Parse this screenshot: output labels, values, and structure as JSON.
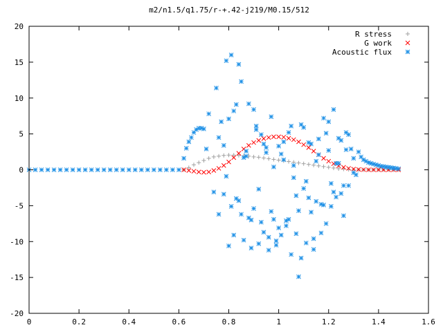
{
  "chart_data": {
    "type": "scatter",
    "title": "m2/n1.5/q1.75/r-+.42-j219/M0.15/512",
    "xlabel": "",
    "ylabel": "",
    "xlim": [
      0,
      1.6
    ],
    "ylim": [
      -20,
      20
    ],
    "xticks": [
      0,
      0.2,
      0.4,
      0.6,
      0.8,
      1,
      1.2,
      1.4,
      1.6
    ],
    "xtick_labels": [
      "0",
      "0.2",
      "0.4",
      "0.6",
      "0.8",
      "1",
      "1.2",
      "1.4",
      "1.6"
    ],
    "yticks": [
      -20,
      -15,
      -10,
      -5,
      0,
      5,
      10,
      15,
      20
    ],
    "ytick_labels": [
      "-20",
      "-15",
      "-10",
      "-5",
      "0",
      "5",
      "10",
      "15",
      "20"
    ],
    "grid": false,
    "legend_position": "top-right",
    "series": [
      {
        "name": "R stress",
        "marker": "plus",
        "color": "#a0a0a0",
        "x": [
          0.62,
          0.64,
          0.66,
          0.68,
          0.7,
          0.72,
          0.74,
          0.76,
          0.78,
          0.8,
          0.82,
          0.84,
          0.86,
          0.88,
          0.9,
          0.92,
          0.94,
          0.96,
          0.98,
          1.0,
          1.02,
          1.04,
          1.06,
          1.08,
          1.1,
          1.12,
          1.14,
          1.16,
          1.18,
          1.2,
          1.22,
          1.24,
          1.26,
          1.28,
          1.3,
          1.32,
          1.34,
          1.36,
          1.38,
          1.4,
          1.42,
          1.44,
          1.46,
          1.48
        ],
        "y": [
          0.0,
          0.3,
          0.7,
          1.0,
          1.3,
          1.6,
          1.8,
          1.9,
          2.0,
          2.05,
          2.05,
          2.0,
          1.95,
          1.9,
          1.8,
          1.75,
          1.65,
          1.55,
          1.45,
          1.35,
          1.25,
          1.15,
          1.05,
          0.95,
          0.85,
          0.75,
          0.65,
          0.55,
          0.45,
          0.35,
          0.25,
          0.15,
          0.1,
          0.05,
          0.02,
          0.0,
          0.0,
          0.0,
          0.0,
          0.0,
          0.0,
          0.0,
          0.0,
          0.0
        ]
      },
      {
        "name": "G work",
        "marker": "cross",
        "color": "#ff0000",
        "x": [
          0.62,
          0.64,
          0.66,
          0.68,
          0.7,
          0.72,
          0.74,
          0.76,
          0.78,
          0.8,
          0.82,
          0.84,
          0.86,
          0.88,
          0.9,
          0.92,
          0.94,
          0.96,
          0.98,
          1.0,
          1.02,
          1.04,
          1.06,
          1.08,
          1.1,
          1.12,
          1.14,
          1.16,
          1.18,
          1.2,
          1.22,
          1.24,
          1.26,
          1.28,
          1.3,
          1.32,
          1.34,
          1.36,
          1.38,
          1.4,
          1.42,
          1.44,
          1.46,
          1.48
        ],
        "y": [
          0.0,
          -0.1,
          -0.2,
          -0.3,
          -0.35,
          -0.3,
          -0.1,
          0.2,
          0.6,
          1.1,
          1.7,
          2.3,
          2.9,
          3.4,
          3.8,
          4.1,
          4.35,
          4.5,
          4.6,
          4.6,
          4.55,
          4.4,
          4.2,
          3.9,
          3.5,
          3.1,
          2.6,
          2.1,
          1.6,
          1.2,
          0.85,
          0.55,
          0.35,
          0.2,
          0.1,
          0.05,
          0.02,
          0.0,
          0.0,
          0.0,
          0.0,
          0.0,
          0.0,
          0.0
        ]
      },
      {
        "name": "Acoustic flux",
        "marker": "star",
        "color": "#1e90e6",
        "x": [
          0.0,
          0.025,
          0.05,
          0.075,
          0.1,
          0.125,
          0.15,
          0.175,
          0.2,
          0.225,
          0.25,
          0.275,
          0.3,
          0.325,
          0.35,
          0.375,
          0.4,
          0.425,
          0.45,
          0.475,
          0.5,
          0.525,
          0.55,
          0.575,
          0.6,
          0.62,
          0.63,
          0.64,
          0.65,
          0.66,
          0.67,
          0.68,
          0.69,
          0.7,
          0.71,
          0.72,
          0.74,
          0.75,
          0.76,
          0.77,
          0.78,
          0.79,
          0.8,
          0.81,
          0.82,
          0.83,
          0.84,
          0.85,
          0.86,
          0.87,
          0.88,
          0.89,
          0.9,
          0.91,
          0.92,
          0.93,
          0.94,
          0.95,
          0.96,
          0.97,
          0.98,
          0.99,
          1.0,
          1.01,
          1.02,
          1.03,
          1.04,
          1.05,
          1.06,
          1.07,
          1.08,
          1.09,
          1.1,
          1.11,
          1.12,
          1.13,
          1.14,
          1.15,
          1.16,
          1.17,
          1.18,
          1.19,
          1.2,
          1.21,
          1.22,
          1.23,
          1.24,
          1.25,
          1.26,
          1.27,
          1.28,
          1.29,
          1.3,
          1.31,
          1.32,
          1.33,
          1.34,
          1.35,
          1.36,
          1.37,
          1.38,
          1.39,
          1.4,
          1.41,
          1.42,
          1.43,
          1.44,
          1.45,
          1.46,
          1.47,
          1.48,
          0.76,
          0.78,
          0.8,
          0.82,
          0.84,
          0.86,
          0.88,
          0.9,
          0.92,
          0.94,
          0.96,
          0.98,
          1.0,
          1.02,
          1.04,
          1.06,
          1.08,
          1.1,
          1.12,
          1.14,
          1.16,
          1.18,
          1.2,
          1.22,
          1.24,
          1.26,
          1.28,
          1.3,
          0.79,
          0.81,
          0.83,
          0.85,
          0.87,
          0.89,
          0.91,
          0.93,
          0.95,
          0.97,
          0.99,
          1.01,
          1.03,
          1.05,
          1.07,
          1.09,
          1.11,
          1.13,
          1.15,
          1.17,
          1.19,
          1.21,
          1.23,
          1.25,
          1.27
        ],
        "y": [
          0,
          0,
          0,
          0,
          0,
          0,
          0,
          0,
          0,
          0,
          0,
          0,
          0,
          0,
          0,
          0,
          0,
          0,
          0,
          0,
          0,
          0,
          0,
          0,
          0,
          1.6,
          3.0,
          3.9,
          4.5,
          5.2,
          5.6,
          5.8,
          5.8,
          5.7,
          2.9,
          7.8,
          -3.1,
          11.4,
          -6.2,
          6.7,
          3.4,
          15.2,
          -10.6,
          16.0,
          8.2,
          -4.0,
          14.7,
          12.3,
          -9.8,
          1.9,
          9.2,
          -7.0,
          -5.4,
          6.1,
          -10.3,
          4.9,
          -8.7,
          2.4,
          -11.2,
          7.4,
          -6.9,
          -10.5,
          3.3,
          -9.1,
          1.4,
          -7.8,
          5.2,
          -11.8,
          0.6,
          -8.9,
          -14.9,
          6.3,
          -2.6,
          -10.2,
          3.8,
          -5.9,
          -9.6,
          1.2,
          4.3,
          -4.8,
          7.2,
          -7.5,
          2.7,
          -1.9,
          8.4,
          -3.8,
          0.9,
          4.1,
          -6.4,
          5.2,
          -2.2,
          2.9,
          1.6,
          -0.7,
          2.5,
          1.8,
          1.4,
          1.2,
          1.0,
          0.9,
          0.8,
          0.7,
          0.6,
          0.5,
          0.45,
          0.4,
          0.35,
          0.3,
          0.25,
          0.2,
          0.15,
          4.5,
          -3.4,
          7.1,
          -9.1,
          -4.3,
          1.7,
          -6.7,
          8.4,
          -2.7,
          3.6,
          -9.4,
          0.4,
          -8.1,
          3.9,
          -6.9,
          -1.1,
          -5.7,
          5.9,
          -3.9,
          -11.1,
          2.1,
          -4.9,
          6.7,
          -3.1,
          4.4,
          -2.2,
          4.9,
          -0.4,
          -0.9,
          -5.1,
          9.1,
          -6.2,
          2.6,
          -10.9,
          5.6,
          -7.3,
          3.1,
          -5.8,
          -9.9,
          2.2,
          -7.1,
          6.1,
          -3.6,
          -12.3,
          -1.6,
          3.6,
          -4.4,
          -8.8,
          5.1,
          -5.1,
          0.9,
          -3.3,
          2.8
        ]
      }
    ]
  }
}
